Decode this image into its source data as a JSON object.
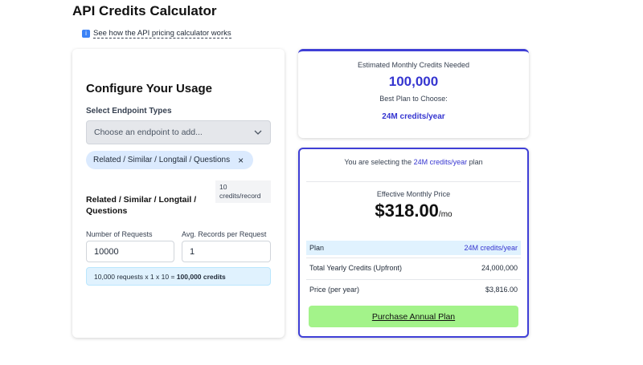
{
  "header": {
    "title": "API Credits Calculator",
    "help_link": "See how the API pricing calculator works"
  },
  "configure": {
    "title": "Configure Your Usage",
    "endpoint_label": "Select Endpoint Types",
    "select_placeholder": "Choose an endpoint to add...",
    "chip": "Related / Similar / Longtail / Questions",
    "endpoint": {
      "name": "Related / Similar / Longtail / Questions",
      "rate_badge": "10 credits/record",
      "requests_label": "Number of Requests",
      "requests_value": "10000",
      "records_label": "Avg. Records per Request",
      "records_value": "1",
      "formula": "10,000 requests x 1 x 10 =",
      "formula_result": "100,000 credits"
    }
  },
  "estimate": {
    "label": "Estimated Monthly Credits Needed",
    "credits": "100,000",
    "plan_label": "Best Plan to Choose:",
    "plan": "24M credits/year"
  },
  "plan_card": {
    "selecting_prefix": "You are selecting the",
    "selecting_plan": "24M credits/year",
    "selecting_suffix": "plan",
    "price_label": "Effective Monthly Price",
    "price": "$318.00",
    "price_unit": "/mo",
    "rows": [
      [
        "Plan",
        "24M credits/year"
      ],
      [
        "Total Yearly Credits (Upfront)",
        "24,000,000"
      ],
      [
        "Price (per year)",
        "$3,816.00"
      ]
    ],
    "button": "Purchase Annual Plan"
  }
}
